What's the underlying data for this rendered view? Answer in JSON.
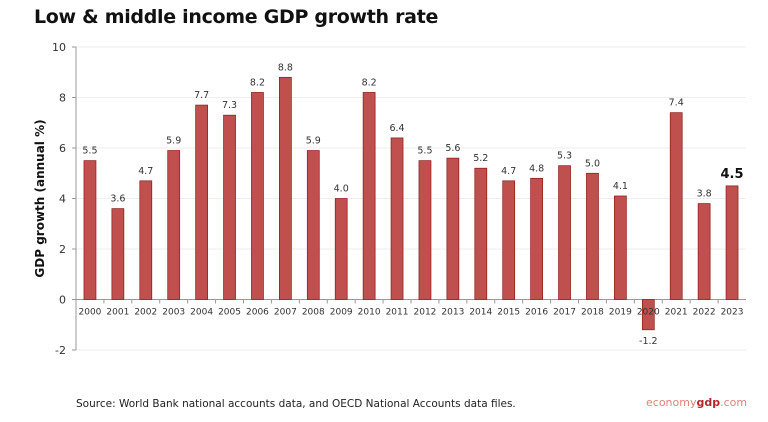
{
  "chart_data": {
    "type": "bar",
    "title": "Low & middle income GDP growth rate",
    "ylabel": "GDP growth (annual %)",
    "xlabel": "",
    "ylim": [
      -2,
      10
    ],
    "yticks": [
      -2,
      0,
      2,
      4,
      6,
      8,
      10
    ],
    "grid": true,
    "categories": [
      "2000",
      "2001",
      "2002",
      "2003",
      "2004",
      "2005",
      "2006",
      "2007",
      "2008",
      "2009",
      "2010",
      "2011",
      "2012",
      "2013",
      "2014",
      "2015",
      "2016",
      "2017",
      "2018",
      "2019",
      "2020",
      "2021",
      "2022",
      "2023"
    ],
    "values": [
      5.5,
      3.6,
      4.7,
      5.9,
      7.7,
      7.3,
      8.2,
      8.8,
      5.9,
      4.0,
      8.2,
      6.4,
      5.5,
      5.6,
      5.2,
      4.7,
      4.8,
      5.3,
      5.0,
      4.1,
      -1.2,
      7.4,
      3.8,
      4.5
    ],
    "data_labels": [
      "5.5",
      "3.6",
      "4.7",
      "5.9",
      "7.7",
      "7.3",
      "8.2",
      "8.8",
      "5.9",
      "4.0",
      "8.2",
      "6.4",
      "5.5",
      "5.6",
      "5.2",
      "4.7",
      "4.8",
      "5.3",
      "5.0",
      "4.1",
      "-1.2",
      "7.4",
      "3.8",
      "4.5"
    ],
    "bar_color": "#c0504d",
    "bar_edge_color": "#8b1a1a",
    "highlight_last_label": true
  },
  "footer": {
    "source": "Source:  World Bank national accounts data, and OECD National Accounts data files.",
    "logo": {
      "part1": "economy",
      "part2": "gdp",
      "part3": ".com"
    }
  }
}
